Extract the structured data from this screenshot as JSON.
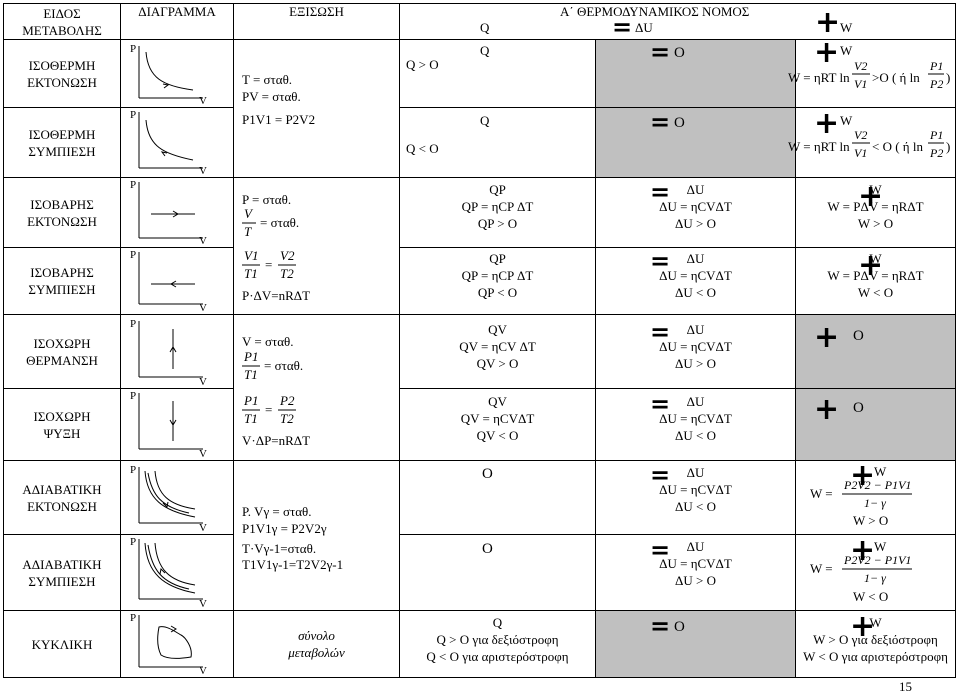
{
  "header": {
    "type": "ΕΙΔΟΣ\nΜΕΤΑΒΟΛΗΣ",
    "diagram": "ΔΙΑΓΡΑΜΜΑ",
    "equation": "ΕΞΙΣΩΣΗ",
    "law": "Α΄ ΘΕΡΜΟΔΥΝΑΜΙΚΟΣ  ΝΟΜΟΣ",
    "q": "Q",
    "du": "ΔU",
    "w": "W",
    "minus": "=",
    "plus": "+"
  },
  "axis": {
    "p": "P",
    "v": "V"
  },
  "rows": {
    "isothermal_exp": {
      "type": "ΙΣΟΘΕΡΜΗ\nΕΚΤΟΝΩΣΗ",
      "sign": "Q > O",
      "q": "Q",
      "du": "O",
      "w": "W",
      "w_formula": "W = ηRT ln",
      "w_ratio_num": "V2",
      "w_ratio_den": "V1",
      "w_mid": ">O ( ή ln",
      "w_p_num": "P1",
      "w_p_den": "P2",
      "w_end": ")"
    },
    "isothermal_eq": {
      "l1": "T = σταθ.",
      "l2": "PV = σταθ.",
      "l3": "P1V1 = P2V2"
    },
    "isothermal_comp": {
      "type": "ΙΣΟΘΕΡΜΗ\nΣΥΜΠΙΕΣΗ",
      "sign": "Q < O",
      "q": "Q",
      "du": "O",
      "w": "W",
      "w_formula": "W = ηRT ln",
      "w_ratio_num": "V2",
      "w_ratio_den": "V1",
      "w_mid": "< O ( ή ln",
      "w_p_num": "P1",
      "w_p_den": "P2",
      "w_end": ")"
    },
    "isobaric_exp": {
      "type": "ΙΣΟΒΑΡΗΣ\nΕΚΤΟΝΩΣΗ",
      "q1": "QP",
      "q2": "QP = ηCP ΔT",
      "q3": "QP > O",
      "du1": "ΔU",
      "du2": "ΔU = ηCVΔT",
      "du3": "ΔU > O",
      "w1": "W",
      "w2": "W = PΔV = ηRΔT",
      "w3": "W > O"
    },
    "isobaric_eq": {
      "l1": "P = σταθ.",
      "v": "V",
      "t": "T",
      "const": "= σταθ.",
      "v1": "V1",
      "t1": "T1",
      "v2": "V2",
      "t2": "T2",
      "last": "P·ΔV=nRΔT"
    },
    "isobaric_comp": {
      "type": "ΙΣΟΒΑΡΗΣ\nΣΥΜΠΙΕΣΗ",
      "q1": "QP",
      "q2": "QP = ηCP ΔT",
      "q3": "QP < O",
      "du1": "ΔU",
      "du2": "ΔU = ηCVΔT",
      "du3": "ΔU < O",
      "w1": "W",
      "w2": "W = PΔV = ηRΔT",
      "w3": "W < O"
    },
    "isochoric_heat": {
      "type": "ΙΣΟΧΩΡΗ\nΘΕΡΜΑΝΣΗ",
      "q1": "QV",
      "q2": "QV = ηCV ΔT",
      "q3": "QV > O",
      "du1": "ΔU",
      "du2": "ΔU = ηCVΔT",
      "du3": "ΔU > O",
      "w": "O"
    },
    "isochoric_eq": {
      "l1": "V = σταθ.",
      "p": "P1",
      "t": "T1",
      "const": "= σταθ.",
      "p1": "P1",
      "t1": "T1",
      "p2": "P2",
      "t2": "T2",
      "last": "V·ΔP=nRΔT"
    },
    "isochoric_cool": {
      "type": "ΙΣΟΧΩΡΗ\nΨΥΞΗ",
      "q1": "QV",
      "q2": "QV = ηCVΔT",
      "q3": "QV < O",
      "du1": "ΔU",
      "du2": "ΔU = ηCVΔT",
      "du3": "ΔU < O",
      "w": "O"
    },
    "adiabatic_exp": {
      "type": "ΑΔΙΑΒΑΤΙΚΗ\nΕΚΤΟΝΩΣΗ",
      "q": "O",
      "du1": "ΔU",
      "du2": "ΔU = ηCVΔT",
      "du3": "ΔU < O",
      "w1": "W",
      "w_eq": "W =",
      "w_num": "P2V2 − P1V1",
      "w_den": "1− γ",
      "w3": "W > O"
    },
    "adiabatic_eq": {
      "l1": "P. Vγ = σταθ.",
      "l2": "P1V1γ = P2V2γ",
      "l3": "T·Vγ-1=σταθ.",
      "l4": "T1V1γ-1=T2V2γ-1"
    },
    "adiabatic_comp": {
      "type": "ΑΔΙΑΒΑΤΙΚΗ\nΣΥΜΠΙΕΣΗ",
      "q": "O",
      "du1": "ΔU",
      "du2": "ΔU = ηCVΔT",
      "du3": "ΔU > O",
      "w1": "W",
      "w_eq": "W =",
      "w_num": "P2V2 − P1V1",
      "w_den": "1− γ",
      "w3": "W < O"
    },
    "cyclic": {
      "type": "ΚΥΚΛΙΚΗ",
      "eq1": "σύνολο",
      "eq2": "μεταβολών",
      "q1": "Q",
      "q2": "Q > O για δεξιόστροφη",
      "q3": "Q < O για αριστερόστροφη",
      "du": "O",
      "w1": "W",
      "w2": "W > O για δεξιόστροφη",
      "w3": "W < O για αριστερόστροφη"
    }
  },
  "page_number": "15",
  "colors": {
    "shade": "#c0c0c0"
  }
}
